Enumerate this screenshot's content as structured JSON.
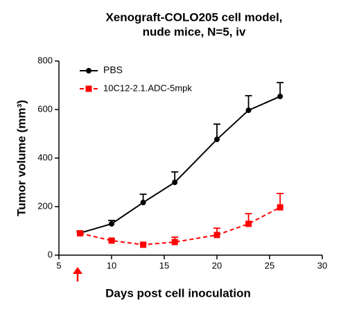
{
  "chart_data": {
    "type": "line",
    "title": [
      "Xenograft-COLO205 cell model,",
      "nude mice, N=5, iv"
    ],
    "x_label": "Days post cell inoculation",
    "y_label": "Tumor volume (mm³)",
    "x": [
      7,
      10,
      13,
      16,
      20,
      23,
      26
    ],
    "series": [
      {
        "name": "PBS",
        "color": "#000000",
        "dashed": false,
        "marker": "circle",
        "values": [
          91,
          129,
          217,
          300,
          477,
          597,
          654
        ],
        "errors": [
          9,
          14,
          34,
          43,
          63,
          60,
          57
        ]
      },
      {
        "name": "10C12-2.1.ADC-5mpk",
        "color": "#ff0000",
        "dashed": true,
        "marker": "square",
        "values": [
          90,
          60,
          43,
          54,
          83,
          129,
          197
        ],
        "errors": [
          5,
          5,
          5,
          20,
          28,
          42,
          57
        ]
      }
    ],
    "xlim": [
      5,
      30
    ],
    "xticks": [
      5,
      10,
      15,
      20,
      25,
      30
    ],
    "ylim": [
      0,
      800
    ],
    "yticks": [
      0,
      200,
      400,
      600,
      800
    ],
    "legend": "upper left"
  }
}
